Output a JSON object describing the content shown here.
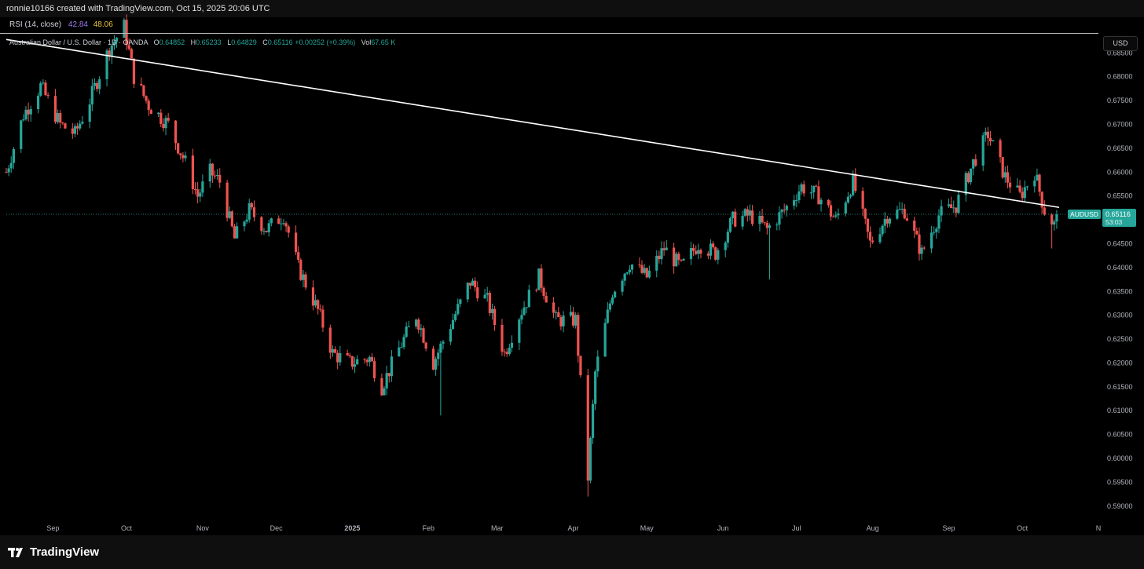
{
  "header": {
    "credit": "ronnie10166 created with TradingView.com, Oct 15, 2025 20:06 UTC"
  },
  "rsi": {
    "label": "RSI (14, close)",
    "value1": "42.84",
    "value2": "48.06"
  },
  "legend": {
    "symbol": "Australian Dollar / U.S. Dollar · 1D · OANDA",
    "o_key": "O",
    "o": "0.64852",
    "h_key": "H",
    "h": "0.65233",
    "l_key": "L",
    "l": "0.64829",
    "c_key": "C",
    "c": "0.65116",
    "change": "+0.00252 (+0.39%)",
    "vol_key": "Vol",
    "vol": "67.65 K"
  },
  "currency_button": "USD",
  "price_badge": {
    "symbol": "AUDUSD",
    "price": "0.65116",
    "countdown": "53:03"
  },
  "footer": {
    "brand": "TradingView"
  },
  "colors": {
    "up": "#26a69a",
    "down": "#ef5350",
    "trendline": "#ffffff",
    "background": "#000000"
  },
  "chart_data": {
    "type": "candlestick",
    "ylim": [
      0.5875,
      0.689
    ],
    "y_ticks": [
      "0.68500",
      "0.68000",
      "0.67500",
      "0.67000",
      "0.66500",
      "0.66000",
      "0.65500",
      "0.65000",
      "0.64500",
      "0.64000",
      "0.63500",
      "0.63000",
      "0.62500",
      "0.62000",
      "0.61500",
      "0.61000",
      "0.60500",
      "0.60000",
      "0.59500",
      "0.59000"
    ],
    "x_ticks": [
      {
        "label": "Sep",
        "date": "2024-09-01"
      },
      {
        "label": "Oct",
        "date": "2024-10-01"
      },
      {
        "label": "Nov",
        "date": "2024-11-01"
      },
      {
        "label": "Dec",
        "date": "2024-12-01"
      },
      {
        "label": "2025",
        "date": "2025-01-01",
        "bold": true
      },
      {
        "label": "Feb",
        "date": "2025-02-01"
      },
      {
        "label": "Mar",
        "date": "2025-03-01"
      },
      {
        "label": "Apr",
        "date": "2025-04-01"
      },
      {
        "label": "May",
        "date": "2025-05-01"
      },
      {
        "label": "Jun",
        "date": "2025-06-01"
      },
      {
        "label": "Jul",
        "date": "2025-07-01"
      },
      {
        "label": "Aug",
        "date": "2025-08-01"
      },
      {
        "label": "Sep",
        "date": "2025-09-01"
      },
      {
        "label": "Oct",
        "date": "2025-10-01"
      },
      {
        "label": "N",
        "date": "2025-11-01"
      }
    ],
    "x_range": [
      "2024-08-13",
      "2025-11-01"
    ],
    "last_price": 0.65116,
    "trendline": {
      "start": {
        "date": "2024-08-13",
        "price": 0.6878
      },
      "end": {
        "date": "2025-10-16",
        "price": 0.6526
      }
    },
    "close_path": [
      {
        "date": "2024-08-13",
        "price": 0.66
      },
      {
        "date": "2024-08-20",
        "price": 0.672
      },
      {
        "date": "2024-08-27",
        "price": 0.678
      },
      {
        "date": "2024-09-04",
        "price": 0.67
      },
      {
        "date": "2024-09-10",
        "price": 0.668
      },
      {
        "date": "2024-09-16",
        "price": 0.675
      },
      {
        "date": "2024-09-24",
        "price": 0.686
      },
      {
        "date": "2024-09-30",
        "price": 0.6905
      },
      {
        "date": "2024-10-04",
        "price": 0.68
      },
      {
        "date": "2024-10-10",
        "price": 0.674
      },
      {
        "date": "2024-10-18",
        "price": 0.67
      },
      {
        "date": "2024-10-25",
        "price": 0.662
      },
      {
        "date": "2024-10-30",
        "price": 0.655
      },
      {
        "date": "2024-11-04",
        "price": 0.66
      },
      {
        "date": "2024-11-08",
        "price": 0.658
      },
      {
        "date": "2024-11-14",
        "price": 0.646
      },
      {
        "date": "2024-11-20",
        "price": 0.652
      },
      {
        "date": "2024-11-27",
        "price": 0.648
      },
      {
        "date": "2024-12-04",
        "price": 0.651
      },
      {
        "date": "2024-12-10",
        "price": 0.64
      },
      {
        "date": "2024-12-18",
        "price": 0.631
      },
      {
        "date": "2024-12-24",
        "price": 0.622
      },
      {
        "date": "2024-12-31",
        "price": 0.62
      },
      {
        "date": "2025-01-08",
        "price": 0.621
      },
      {
        "date": "2025-01-13",
        "price": 0.615
      },
      {
        "date": "2025-01-20",
        "price": 0.623
      },
      {
        "date": "2025-01-27",
        "price": 0.63
      },
      {
        "date": "2025-02-03",
        "price": 0.62
      },
      {
        "date": "2025-02-10",
        "price": 0.628
      },
      {
        "date": "2025-02-18",
        "price": 0.637
      },
      {
        "date": "2025-02-25",
        "price": 0.633
      },
      {
        "date": "2025-03-04",
        "price": 0.622
      },
      {
        "date": "2025-03-10",
        "price": 0.63
      },
      {
        "date": "2025-03-18",
        "price": 0.638
      },
      {
        "date": "2025-03-25",
        "price": 0.629
      },
      {
        "date": "2025-04-02",
        "price": 0.629
      },
      {
        "date": "2025-04-07",
        "price": 0.596
      },
      {
        "date": "2025-04-10",
        "price": 0.618
      },
      {
        "date": "2025-04-17",
        "price": 0.635
      },
      {
        "date": "2025-04-24",
        "price": 0.641
      },
      {
        "date": "2025-05-01",
        "price": 0.638
      },
      {
        "date": "2025-05-08",
        "price": 0.644
      },
      {
        "date": "2025-05-15",
        "price": 0.64
      },
      {
        "date": "2025-05-22",
        "price": 0.645
      },
      {
        "date": "2025-05-29",
        "price": 0.643
      },
      {
        "date": "2025-06-05",
        "price": 0.65
      },
      {
        "date": "2025-06-12",
        "price": 0.651
      },
      {
        "date": "2025-06-19",
        "price": 0.648
      },
      {
        "date": "2025-06-26",
        "price": 0.652
      },
      {
        "date": "2025-07-03",
        "price": 0.657
      },
      {
        "date": "2025-07-10",
        "price": 0.655
      },
      {
        "date": "2025-07-17",
        "price": 0.65
      },
      {
        "date": "2025-07-24",
        "price": 0.658
      },
      {
        "date": "2025-07-31",
        "price": 0.645
      },
      {
        "date": "2025-08-07",
        "price": 0.651
      },
      {
        "date": "2025-08-14",
        "price": 0.652
      },
      {
        "date": "2025-08-21",
        "price": 0.643
      },
      {
        "date": "2025-08-28",
        "price": 0.651
      },
      {
        "date": "2025-09-04",
        "price": 0.653
      },
      {
        "date": "2025-09-11",
        "price": 0.662
      },
      {
        "date": "2025-09-17",
        "price": 0.668
      },
      {
        "date": "2025-09-24",
        "price": 0.659
      },
      {
        "date": "2025-09-30",
        "price": 0.655
      },
      {
        "date": "2025-10-06",
        "price": 0.66
      },
      {
        "date": "2025-10-10",
        "price": 0.652
      },
      {
        "date": "2025-10-14",
        "price": 0.649
      },
      {
        "date": "2025-10-15",
        "price": 0.65116
      }
    ],
    "spikes": [
      {
        "date": "2025-04-07",
        "low": 0.592
      },
      {
        "date": "2025-02-06",
        "low": 0.609
      },
      {
        "date": "2025-01-14",
        "low": 0.6135
      },
      {
        "date": "2025-06-20",
        "low": 0.6375
      },
      {
        "date": "2025-10-13",
        "low": 0.644
      }
    ]
  }
}
